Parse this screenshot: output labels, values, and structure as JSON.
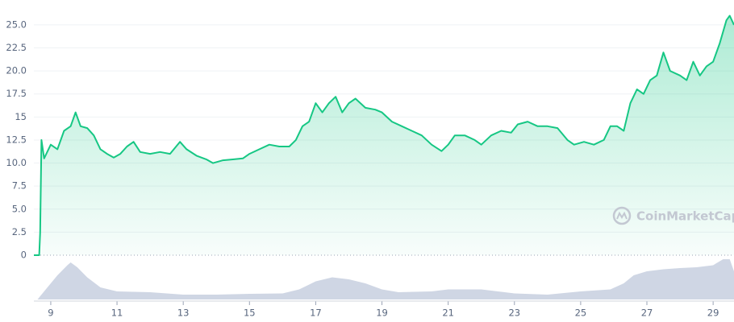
{
  "chart_data": {
    "type": "line",
    "color": "#16c784",
    "x": [
      8.49,
      8.65,
      8.68,
      8.72,
      8.8,
      9.0,
      9.2,
      9.4,
      9.6,
      9.75,
      9.9,
      10.1,
      10.3,
      10.5,
      10.7,
      10.9,
      11.1,
      11.3,
      11.5,
      11.7,
      12.0,
      12.3,
      12.6,
      12.9,
      13.1,
      13.4,
      13.7,
      13.9,
      14.2,
      14.5,
      14.8,
      15.0,
      15.3,
      15.6,
      15.9,
      16.2,
      16.4,
      16.6,
      16.8,
      17.0,
      17.2,
      17.4,
      17.6,
      17.8,
      18.0,
      18.2,
      18.5,
      18.8,
      19.0,
      19.3,
      19.6,
      19.9,
      20.2,
      20.5,
      20.8,
      21.0,
      21.2,
      21.5,
      21.8,
      22.0,
      22.3,
      22.6,
      22.9,
      23.1,
      23.4,
      23.7,
      24.0,
      24.3,
      24.6,
      24.8,
      25.1,
      25.4,
      25.7,
      25.9,
      26.1,
      26.3,
      26.5,
      26.7,
      26.9,
      27.1,
      27.3,
      27.5,
      27.7,
      28.0,
      28.2,
      28.4,
      28.6,
      28.8,
      29.0,
      29.2,
      29.4,
      29.5,
      29.63
    ],
    "values": [
      0,
      0,
      2.5,
      12.5,
      10.5,
      12,
      11.5,
      13.5,
      14,
      15.5,
      14,
      13.8,
      13,
      11.5,
      11,
      10.6,
      11,
      11.8,
      12.3,
      11.2,
      11,
      11.2,
      11,
      12.3,
      11.5,
      10.8,
      10.4,
      10,
      10.3,
      10.4,
      10.5,
      11,
      11.5,
      12,
      11.8,
      11.8,
      12.5,
      14,
      14.5,
      16.5,
      15.5,
      16.5,
      17.2,
      15.5,
      16.5,
      17,
      16,
      15.8,
      15.5,
      14.5,
      14,
      13.5,
      13,
      12,
      11.3,
      12,
      13,
      13,
      12.5,
      12,
      13,
      13.5,
      13.3,
      14.2,
      14.5,
      14,
      14,
      13.8,
      12.5,
      12,
      12.3,
      12,
      12.5,
      14,
      14,
      13.5,
      16.5,
      18,
      17.5,
      19,
      19.5,
      22,
      20,
      19.5,
      19,
      21,
      19.5,
      20.5,
      21,
      23,
      25.5,
      26,
      25
    ],
    "xlim": [
      8.49,
      29.63
    ],
    "ylim": [
      0,
      27.7
    ],
    "xticks": [
      9,
      11,
      13,
      15,
      17,
      19,
      21,
      23,
      25,
      27,
      29
    ],
    "yticks": [
      0,
      2.5,
      {
        "value": 5,
        "label": "5.0"
      },
      7.5,
      {
        "value": 10,
        "label": "10.0"
      },
      12.5,
      15,
      17.5,
      {
        "value": 20,
        "label": "20.0"
      },
      22.5,
      {
        "value": 25,
        "label": "25.0"
      }
    ],
    "grid": true,
    "volume": {
      "color": "#cfd6e4",
      "x": [
        8.49,
        8.6,
        8.9,
        9.2,
        9.5,
        9.6,
        9.8,
        10.1,
        10.5,
        11.0,
        12.0,
        13.0,
        14.0,
        15.0,
        16.0,
        16.5,
        17.0,
        17.5,
        18.0,
        18.5,
        19.0,
        19.5,
        20.5,
        21.0,
        22.0,
        23.0,
        24.0,
        25.0,
        25.9,
        26.3,
        26.6,
        27.0,
        27.5,
        28.0,
        28.5,
        29.0,
        29.3,
        29.5,
        29.63
      ],
      "values": [
        0,
        0,
        30,
        60,
        85,
        92,
        80,
        55,
        30,
        20,
        18,
        12,
        12,
        14,
        15,
        25,
        45,
        55,
        50,
        40,
        25,
        18,
        20,
        25,
        25,
        15,
        12,
        20,
        25,
        40,
        60,
        70,
        75,
        78,
        80,
        85,
        100,
        100,
        70
      ],
      "ylim": [
        0,
        100
      ]
    },
    "watermark": "CoinMarketCap"
  }
}
